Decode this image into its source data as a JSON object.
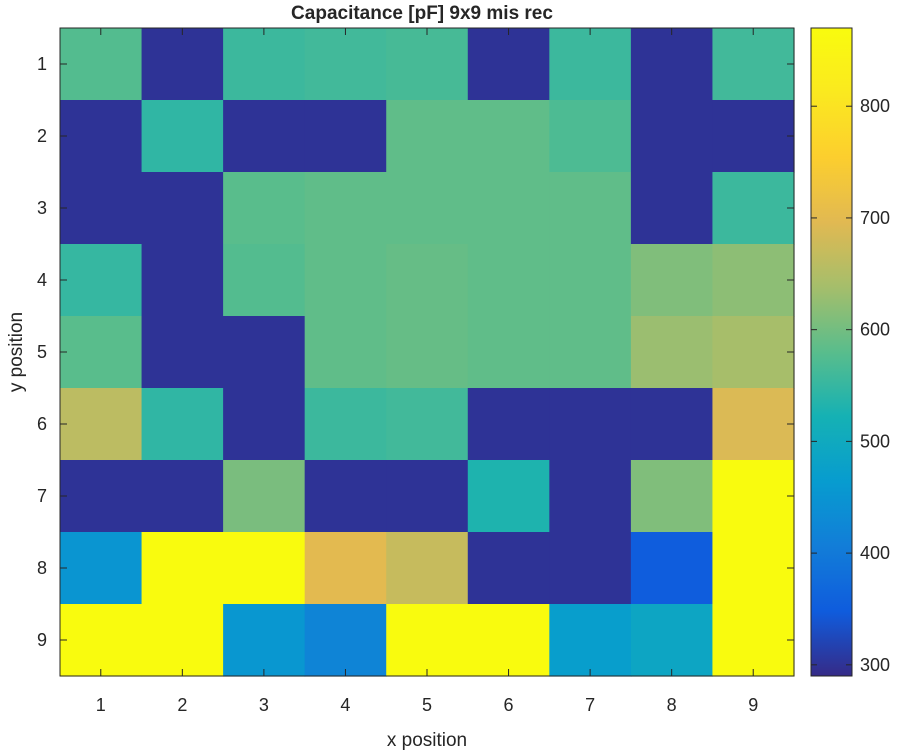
{
  "chart_data": {
    "type": "heatmap",
    "title": "Capacitance [pF] 9x9 mis rec",
    "xlabel": "x position",
    "ylabel": "y position",
    "x_categories": [
      "1",
      "2",
      "3",
      "4",
      "5",
      "6",
      "7",
      "8",
      "9"
    ],
    "y_categories": [
      "1",
      "2",
      "3",
      "4",
      "5",
      "6",
      "7",
      "8",
      "9"
    ],
    "y_direction": "top-to-bottom",
    "values": [
      [
        575,
        300,
        555,
        560,
        565,
        300,
        555,
        300,
        560
      ],
      [
        300,
        545,
        300,
        300,
        585,
        585,
        570,
        300,
        300
      ],
      [
        300,
        300,
        580,
        585,
        585,
        585,
        585,
        300,
        555
      ],
      [
        550,
        300,
        575,
        585,
        590,
        585,
        585,
        610,
        620
      ],
      [
        580,
        300,
        300,
        585,
        590,
        585,
        585,
        630,
        640
      ],
      [
        660,
        545,
        300,
        555,
        560,
        300,
        300,
        300,
        690
      ],
      [
        300,
        300,
        605,
        300,
        300,
        530,
        300,
        610,
        870
      ],
      [
        450,
        870,
        870,
        700,
        670,
        300,
        300,
        350,
        870
      ],
      [
        870,
        870,
        455,
        420,
        870,
        870,
        470,
        490,
        870
      ]
    ],
    "colorbar": {
      "min": 290,
      "max": 870,
      "ticks": [
        300,
        400,
        500,
        600,
        700,
        800
      ],
      "colormap": "parula"
    },
    "grid": false,
    "legend": "none"
  }
}
